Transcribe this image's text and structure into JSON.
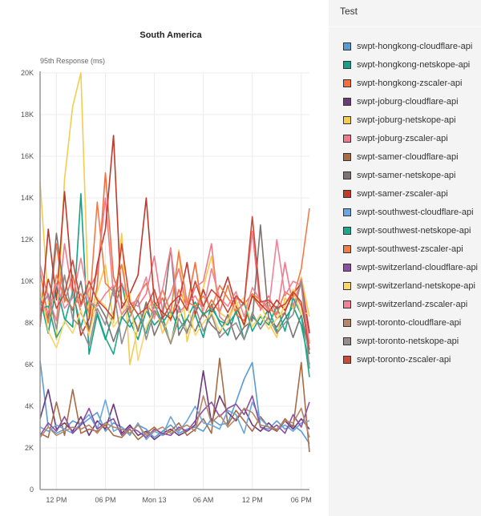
{
  "chart_data": {
    "type": "line",
    "title": "South America",
    "ylabel": "95th Response (ms)",
    "xlabel": "",
    "ylim": [
      0,
      20000
    ],
    "yticks": [
      "0",
      "2K",
      "4K",
      "6K",
      "8K",
      "10K",
      "12K",
      "14K",
      "16K",
      "18K",
      "20K"
    ],
    "xlim": [
      "Sun 10:00",
      "Mon 19:00"
    ],
    "xticks": [
      {
        "at": "Sun 12:00",
        "label": "12 PM"
      },
      {
        "at": "Sun 18:00",
        "label": "06 PM"
      },
      {
        "at": "Mon 00:00",
        "label": "Mon 13"
      },
      {
        "at": "Mon 06:00",
        "label": "06 AM"
      },
      {
        "at": "Mon 12:00",
        "label": "12 PM"
      },
      {
        "at": "Mon 18:00",
        "label": "06 PM"
      }
    ],
    "grid": true,
    "legend_placement": "right",
    "x": [
      "Sun 10:00",
      "Sun 11:00",
      "Sun 12:00",
      "Sun 13:00",
      "Sun 14:00",
      "Sun 15:00",
      "Sun 16:00",
      "Sun 17:00",
      "Sun 18:00",
      "Sun 19:00",
      "Sun 20:00",
      "Sun 21:00",
      "Sun 22:00",
      "Sun 23:00",
      "Mon 00:00",
      "Mon 01:00",
      "Mon 02:00",
      "Mon 03:00",
      "Mon 04:00",
      "Mon 05:00",
      "Mon 06:00",
      "Mon 07:00",
      "Mon 08:00",
      "Mon 09:00",
      "Mon 10:00",
      "Mon 11:00",
      "Mon 12:00",
      "Mon 13:00",
      "Mon 14:00",
      "Mon 15:00",
      "Mon 16:00",
      "Mon 17:00",
      "Mon 18:00",
      "Mon 19:00"
    ],
    "series": [
      {
        "name": "swpt-hongkong-cloudflare-api",
        "color": "#5b9bd5",
        "values": [
          6200,
          3000,
          2700,
          2900,
          3300,
          3100,
          3400,
          3700,
          2800,
          3200,
          3000,
          2700,
          3100,
          2900,
          2500,
          2800,
          3100,
          2700,
          2900,
          3000,
          2800,
          3400,
          3100,
          3200,
          4200,
          5300,
          6100,
          3000,
          2900,
          3300,
          2900,
          3100,
          2800,
          2200
        ]
      },
      {
        "name": "swpt-hongkong-netskope-api",
        "color": "#16a085",
        "values": [
          9200,
          7500,
          9800,
          8200,
          7800,
          14200,
          6500,
          8400,
          7200,
          8500,
          9900,
          8100,
          7200,
          8600,
          7900,
          8300,
          7000,
          8800,
          7600,
          8400,
          7300,
          8900,
          8000,
          7400,
          8600,
          7200,
          8300,
          7900,
          8700,
          7600,
          8200,
          8800,
          7900,
          6000
        ]
      },
      {
        "name": "swpt-hongkong-zscaler-api",
        "color": "#f07040",
        "values": [
          10500,
          8200,
          11800,
          9000,
          10300,
          8500,
          7600,
          9800,
          15200,
          10200,
          9000,
          8600,
          7700,
          8900,
          8400,
          9200,
          8100,
          9600,
          8800,
          10900,
          8300,
          9100,
          8500,
          9800,
          8400,
          8100,
          9300,
          8700,
          9000,
          8200,
          8500,
          9600,
          8800,
          7100
        ]
      },
      {
        "name": "swpt-joburg-cloudflare-api",
        "color": "#6b3a7a",
        "values": [
          3400,
          4800,
          2900,
          3200,
          2800,
          3500,
          2600,
          3300,
          2900,
          4100,
          2700,
          3100,
          2600,
          2800,
          2400,
          2700,
          2900,
          2600,
          2800,
          3100,
          5700,
          3200,
          4500,
          3700,
          3300,
          3900,
          3100,
          2800,
          3200,
          2800,
          3300,
          2900,
          3400,
          2900
        ]
      },
      {
        "name": "swpt-joburg-netskope-api",
        "color": "#f7cb4d",
        "values": [
          14800,
          9000,
          7200,
          14900,
          18400,
          20000,
          8200,
          9500,
          10800,
          8000,
          12300,
          6000,
          7800,
          8600,
          9100,
          7500,
          8400,
          11500,
          7100,
          8600,
          9700,
          11200,
          8500,
          8200,
          9100,
          7800,
          9400,
          8900,
          8000,
          7300,
          9200,
          8700,
          10200,
          8300
        ]
      },
      {
        "name": "swpt-joburg-zscaler-api",
        "color": "#f07a8a",
        "values": [
          10800,
          9200,
          8100,
          11800,
          9300,
          8800,
          9600,
          10400,
          14000,
          9300,
          9900,
          9000,
          8800,
          9400,
          11200,
          8600,
          9400,
          10600,
          8700,
          9700,
          10000,
          11800,
          8300,
          7900,
          9200,
          8900,
          12400,
          8600,
          9300,
          8400,
          10900,
          8800,
          10100,
          7600
        ]
      },
      {
        "name": "swpt-samer-cloudflare-api",
        "color": "#a86b45",
        "values": [
          2700,
          2500,
          4200,
          2600,
          4800,
          2700,
          2900,
          2800,
          3100,
          2600,
          2500,
          2900,
          2400,
          2700,
          3000,
          2600,
          2800,
          3200,
          2600,
          2900,
          3400,
          2700,
          6300,
          3100,
          3800,
          3300,
          2800,
          3500,
          3000,
          2800,
          3400,
          3000,
          6100,
          1800
        ]
      },
      {
        "name": "swpt-samer-netskope-api",
        "color": "#7d7372",
        "values": [
          9000,
          8200,
          12300,
          9400,
          8600,
          10000,
          7700,
          9000,
          8300,
          7100,
          8200,
          8800,
          7600,
          9000,
          7400,
          8300,
          11600,
          7400,
          8200,
          7600,
          8500,
          7900,
          7500,
          8400,
          7200,
          7800,
          8100,
          12700,
          8200,
          7800,
          8500,
          7300,
          8400,
          6500
        ]
      },
      {
        "name": "swpt-samer-zscaler-api",
        "color": "#c0392b",
        "values": [
          7800,
          12500,
          9100,
          14300,
          9700,
          7400,
          8200,
          10800,
          12500,
          17000,
          8700,
          9400,
          10300,
          14000,
          9000,
          8500,
          8200,
          9000,
          10900,
          8400,
          9600,
          8500,
          9100,
          10200,
          8800,
          7900,
          9300,
          8900,
          8500,
          9100,
          8600,
          9400,
          9900,
          7500
        ]
      },
      {
        "name": "swpt-southwest-cloudflare-api",
        "color": "#6aa6e0",
        "values": [
          3000,
          2800,
          3100,
          2900,
          2700,
          3200,
          3600,
          2900,
          4300,
          2800,
          3000,
          2600,
          3200,
          2400,
          2800,
          2600,
          3500,
          2800,
          3300,
          4000,
          3200,
          3100,
          2900,
          3800,
          3600,
          2700,
          4200,
          3400,
          3000,
          2900,
          3100,
          2800,
          3200,
          3300
        ]
      },
      {
        "name": "swpt-southwest-netskope-api",
        "color": "#1ea88a",
        "values": [
          8700,
          8800,
          7300,
          8000,
          9500,
          7800,
          9200,
          8500,
          7300,
          6500,
          8300,
          7800,
          8400,
          7500,
          8900,
          8000,
          8600,
          7700,
          8200,
          9000,
          8400,
          8700,
          8100,
          7900,
          8500,
          9000,
          7600,
          8300,
          7900,
          8800,
          7600,
          9200,
          8400,
          5400
        ]
      },
      {
        "name": "swpt-southwest-zscaler-api",
        "color": "#f17c4a",
        "values": [
          9500,
          8000,
          10300,
          9200,
          8700,
          9400,
          8500,
          13800,
          9900,
          9500,
          10800,
          8500,
          9300,
          9900,
          8700,
          9600,
          8500,
          11400,
          9000,
          8800,
          9300,
          8700,
          9800,
          9200,
          8600,
          8900,
          9400,
          9100,
          8700,
          8400,
          9500,
          9200,
          10600,
          13500
        ]
      },
      {
        "name": "swpt-switzerland-cloudflare-api",
        "color": "#8e4fa0",
        "values": [
          2600,
          3200,
          2800,
          3500,
          2700,
          3100,
          3900,
          2900,
          3200,
          3400,
          2600,
          3000,
          2800,
          2500,
          2900,
          2700,
          2600,
          3000,
          2800,
          3300,
          3800,
          4200,
          3500,
          3900,
          4100,
          3600,
          4500,
          3000,
          2800,
          3100,
          2700,
          3600,
          3000,
          4200
        ]
      },
      {
        "name": "swpt-switzerland-netskope-api",
        "color": "#f9d66a",
        "values": [
          9800,
          7600,
          6800,
          8100,
          7500,
          8600,
          7400,
          9200,
          8800,
          7800,
          8400,
          9400,
          6200,
          7800,
          8600,
          8000,
          7100,
          8300,
          8900,
          7400,
          8000,
          8500,
          7600,
          8100,
          8900,
          9200,
          7800,
          8400,
          7700,
          8200,
          8800,
          9600,
          8400,
          8500
        ]
      },
      {
        "name": "swpt-switzerland-zscaler-api",
        "color": "#f08396",
        "values": [
          9000,
          8500,
          9900,
          8700,
          9200,
          11100,
          9000,
          8800,
          9400,
          9800,
          8400,
          8900,
          9100,
          10200,
          8200,
          9600,
          11600,
          8500,
          8900,
          9300,
          8600,
          10600,
          9200,
          8800,
          9500,
          8300,
          9700,
          9100,
          8600,
          12000,
          9300,
          10000,
          9800,
          7000
        ]
      },
      {
        "name": "swpt-toronto-cloudflare-api",
        "color": "#b5876a",
        "values": [
          2500,
          3000,
          2600,
          2800,
          3000,
          2900,
          3100,
          2700,
          3200,
          3000,
          2900,
          2700,
          3100,
          2600,
          2800,
          3000,
          2700,
          2900,
          3100,
          2800,
          4500,
          3200,
          3600,
          3000,
          3400,
          3900,
          3700,
          3100,
          3000,
          2900,
          3300,
          3200,
          3900,
          2500
        ]
      },
      {
        "name": "swpt-toronto-netskope-api",
        "color": "#958c8b",
        "values": [
          8600,
          9400,
          7700,
          10300,
          8200,
          7800,
          6900,
          8700,
          7900,
          9700,
          7000,
          8300,
          9100,
          7200,
          8600,
          8000,
          7000,
          8200,
          7500,
          8800,
          7600,
          8400,
          7300,
          7700,
          8000,
          7200,
          8500,
          7700,
          8300,
          7500,
          8000,
          8400,
          10000,
          5800
        ]
      },
      {
        "name": "swpt-toronto-zscaler-api",
        "color": "#c94a36",
        "values": [
          8200,
          10100,
          8700,
          9400,
          11000,
          8900,
          10000,
          9100,
          8700,
          8200,
          11800,
          9000,
          8400,
          8700,
          9600,
          8200,
          8900,
          9300,
          8600,
          10000,
          8800,
          9600,
          9200,
          8500,
          9300,
          8900,
          13100,
          9000,
          9100,
          8700,
          8900,
          9500,
          9000,
          6700
        ]
      }
    ]
  },
  "panel": {
    "header": "Test"
  }
}
